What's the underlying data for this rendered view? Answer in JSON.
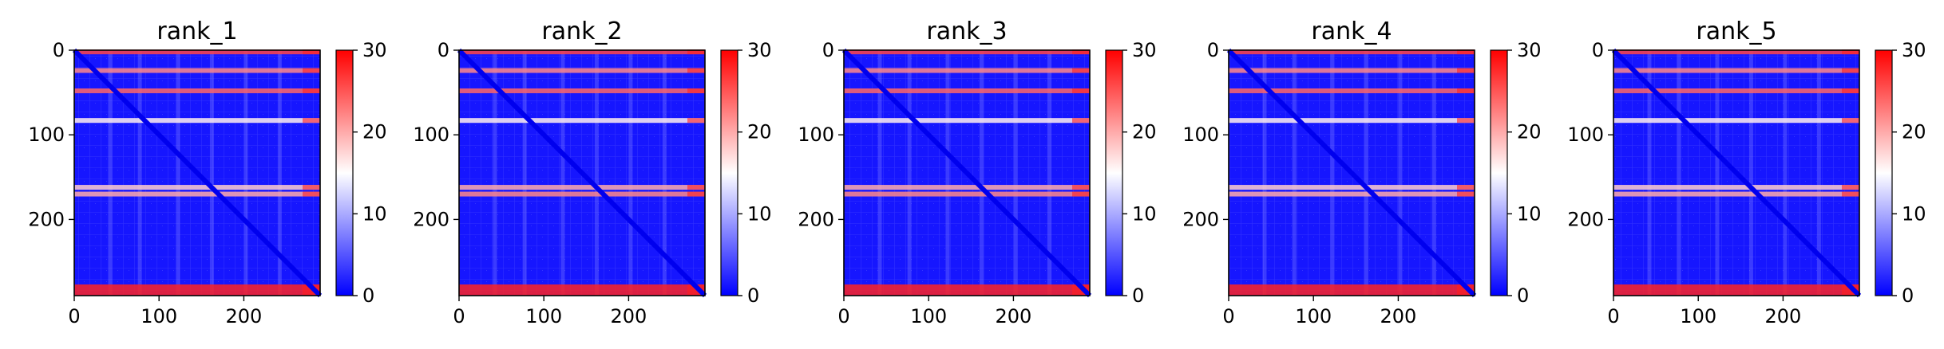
{
  "figure": {
    "type": "heatmap-grid",
    "colormap": {
      "name": "bwr",
      "low": "#0000ff",
      "mid": "#ffffff",
      "high": "#ff0000"
    },
    "colors": {
      "axis": "#000000",
      "background": "#ffffff"
    }
  },
  "chart_data": [
    {
      "type": "heatmap",
      "title": "rank_1",
      "matrix_size": 290,
      "x_ticks": [
        0,
        100,
        200
      ],
      "y_ticks": [
        0,
        100,
        200
      ],
      "vlim": [
        0,
        30
      ],
      "colorbar_ticks": [
        0,
        10,
        20,
        30
      ],
      "xlabel": "",
      "ylabel": "",
      "row_bands": [
        {
          "row": 2,
          "value": 26
        },
        {
          "row": 24,
          "value": 22
        },
        {
          "row": 48,
          "value": 24
        },
        {
          "row": 83,
          "value": 16
        },
        {
          "row": 162,
          "value": 18
        },
        {
          "row": 170,
          "value": 20
        },
        {
          "row": 286,
          "value": 28
        }
      ]
    },
    {
      "type": "heatmap",
      "title": "rank_2",
      "matrix_size": 290,
      "x_ticks": [
        0,
        100,
        200
      ],
      "y_ticks": [
        0,
        100,
        200
      ],
      "vlim": [
        0,
        30
      ],
      "colorbar_ticks": [
        0,
        10,
        20,
        30
      ],
      "xlabel": "",
      "ylabel": "",
      "row_bands": [
        {
          "row": 2,
          "value": 26
        },
        {
          "row": 24,
          "value": 22
        },
        {
          "row": 48,
          "value": 24
        },
        {
          "row": 83,
          "value": 16
        },
        {
          "row": 162,
          "value": 20
        },
        {
          "row": 170,
          "value": 22
        },
        {
          "row": 286,
          "value": 28
        }
      ]
    },
    {
      "type": "heatmap",
      "title": "rank_3",
      "matrix_size": 290,
      "x_ticks": [
        0,
        100,
        200
      ],
      "y_ticks": [
        0,
        100,
        200
      ],
      "vlim": [
        0,
        30
      ],
      "colorbar_ticks": [
        0,
        10,
        20,
        30
      ],
      "xlabel": "",
      "ylabel": "",
      "row_bands": [
        {
          "row": 2,
          "value": 26
        },
        {
          "row": 24,
          "value": 22
        },
        {
          "row": 48,
          "value": 24
        },
        {
          "row": 83,
          "value": 16
        },
        {
          "row": 162,
          "value": 20
        },
        {
          "row": 170,
          "value": 22
        },
        {
          "row": 286,
          "value": 28
        }
      ]
    },
    {
      "type": "heatmap",
      "title": "rank_4",
      "matrix_size": 290,
      "x_ticks": [
        0,
        100,
        200
      ],
      "y_ticks": [
        0,
        100,
        200
      ],
      "vlim": [
        0,
        30
      ],
      "colorbar_ticks": [
        0,
        10,
        20,
        30
      ],
      "xlabel": "",
      "ylabel": "",
      "row_bands": [
        {
          "row": 2,
          "value": 26
        },
        {
          "row": 24,
          "value": 22
        },
        {
          "row": 48,
          "value": 24
        },
        {
          "row": 83,
          "value": 16
        },
        {
          "row": 162,
          "value": 18
        },
        {
          "row": 170,
          "value": 20
        },
        {
          "row": 286,
          "value": 28
        }
      ]
    },
    {
      "type": "heatmap",
      "title": "rank_5",
      "matrix_size": 290,
      "x_ticks": [
        0,
        100,
        200
      ],
      "y_ticks": [
        0,
        100,
        200
      ],
      "vlim": [
        0,
        30
      ],
      "colorbar_ticks": [
        0,
        10,
        20,
        30
      ],
      "xlabel": "",
      "ylabel": "",
      "row_bands": [
        {
          "row": 2,
          "value": 26
        },
        {
          "row": 24,
          "value": 22
        },
        {
          "row": 48,
          "value": 24
        },
        {
          "row": 83,
          "value": 16
        },
        {
          "row": 162,
          "value": 18
        },
        {
          "row": 170,
          "value": 20
        },
        {
          "row": 286,
          "value": 28
        }
      ]
    }
  ]
}
